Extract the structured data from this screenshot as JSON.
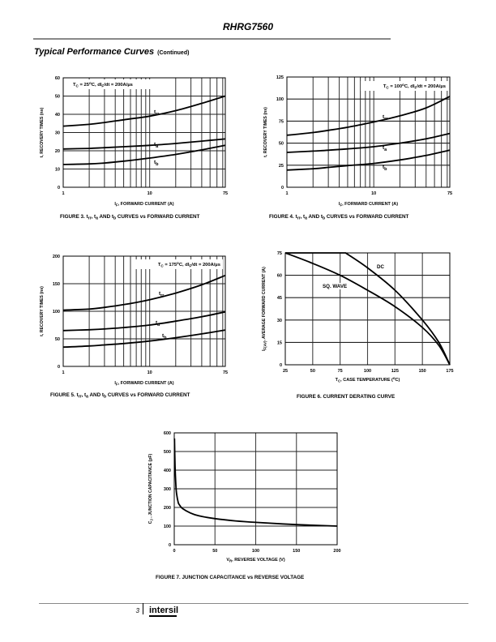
{
  "header": {
    "title": "RHRG7560"
  },
  "section": {
    "title": "Typical Performance Curves",
    "continued": "(Continued)"
  },
  "footer": {
    "page": "3",
    "logo": "intersil"
  },
  "chart_data": [
    {
      "id": "fig3",
      "type": "line",
      "xscale": "log",
      "caption": "FIGURE 3.  trr, ta AND tb CURVES vs FORWARD CURRENT",
      "caption_parts": [
        "FIGURE 3.  t",
        "rr",
        ", t",
        "a",
        " AND t",
        "b",
        " CURVES vs FORWARD CURRENT"
      ],
      "xlabel_parts": [
        "I",
        "F",
        ", FORWARD CURRENT (A)"
      ],
      "ylabel": "t, RECOVERY TIMES (ns)",
      "annotation_parts": [
        "T",
        "C",
        " = 25",
        "o",
        "C, dI",
        "F",
        "/dt = 200A/µs"
      ],
      "xlim": [
        1,
        75
      ],
      "ylim": [
        0,
        60
      ],
      "xticks": [
        1,
        10,
        75
      ],
      "xtick_labels": [
        "1",
        "10",
        "75"
      ],
      "yticks": [
        0,
        10,
        20,
        30,
        40,
        50,
        60
      ],
      "ytick_labels": [
        "0",
        "10",
        "20",
        "30",
        "40",
        "50",
        "60"
      ],
      "xgrid": [
        2,
        3,
        4,
        5,
        6,
        7,
        8,
        9,
        10,
        20,
        30,
        40,
        50,
        60,
        70
      ],
      "series": [
        {
          "name": "trr",
          "label": "t",
          "sub": "rr",
          "x": [
            1,
            2,
            3,
            5,
            10,
            20,
            40,
            75
          ],
          "y": [
            33.5,
            34.5,
            35.5,
            37,
            39,
            42,
            46,
            50
          ]
        },
        {
          "name": "ta",
          "label": "t",
          "sub": "a",
          "x": [
            1,
            2,
            3,
            5,
            10,
            20,
            40,
            75
          ],
          "y": [
            21,
            21.3,
            21.7,
            22.2,
            23,
            24,
            25.3,
            26.5
          ]
        },
        {
          "name": "tb",
          "label": "t",
          "sub": "b",
          "x": [
            1,
            2,
            3,
            5,
            10,
            20,
            40,
            75
          ],
          "y": [
            12.5,
            12.8,
            13.3,
            14.3,
            16,
            18,
            20.5,
            23
          ]
        }
      ]
    },
    {
      "id": "fig4",
      "type": "line",
      "xscale": "log",
      "caption": "FIGURE 4.  trr, ta AND tb CURVES vs FORWARD CURRENT",
      "caption_parts": [
        "FIGURE 4.  t",
        "rr",
        ", t",
        "a",
        " AND t",
        "b",
        " CURVES vs FORWARD CURRENT"
      ],
      "xlabel_parts": [
        "I",
        "F",
        ", FORWARD CURRENT (A)"
      ],
      "ylabel": "t, RECOVERY TIMES (ns)",
      "annotation_parts": [
        "T",
        "C",
        " = 100",
        "o",
        "C, dI",
        "F",
        "/dt = 200A/µs"
      ],
      "xlim": [
        1,
        75
      ],
      "ylim": [
        0,
        125
      ],
      "xticks": [
        1,
        10,
        75
      ],
      "xtick_labels": [
        "1",
        "10",
        "75"
      ],
      "yticks": [
        0,
        25,
        50,
        75,
        100,
        125
      ],
      "ytick_labels": [
        "0",
        "25",
        "50",
        "75",
        "100",
        "125"
      ],
      "xgrid": [
        2,
        3,
        4,
        5,
        6,
        7,
        8,
        9,
        10,
        20,
        30,
        40,
        50,
        60,
        70
      ],
      "series": [
        {
          "name": "trr",
          "label": "t",
          "sub": "rr",
          "x": [
            1,
            2,
            3,
            5,
            10,
            20,
            40,
            75
          ],
          "y": [
            59,
            62,
            64.5,
            68,
            74,
            81,
            90,
            103
          ]
        },
        {
          "name": "ta",
          "label": "t",
          "sub": "a",
          "x": [
            1,
            2,
            3,
            5,
            10,
            20,
            40,
            75
          ],
          "y": [
            39.5,
            41,
            42,
            43.5,
            46,
            50,
            55,
            61
          ]
        },
        {
          "name": "tb",
          "label": "t",
          "sub": "b",
          "x": [
            1,
            2,
            3,
            5,
            10,
            20,
            40,
            75
          ],
          "y": [
            19.5,
            21,
            22.5,
            24.5,
            27,
            31,
            36,
            42
          ]
        }
      ]
    },
    {
      "id": "fig5",
      "type": "line",
      "xscale": "log",
      "caption": "FIGURE 5.  trr, ta AND tb CURVES vs FORWARD CURRENT",
      "caption_parts": [
        "FIGURE 5.  t",
        "rr",
        ", t",
        "a",
        " AND t",
        "b",
        " CURVES vs FORWARD CURRENT"
      ],
      "xlabel_parts": [
        "I",
        "F",
        ", FORWARD CURRENT (A)"
      ],
      "ylabel": "t, RECOVERY TIMES (ns)",
      "annotation_parts": [
        "T",
        "C",
        " = 175",
        "o",
        "C, dI",
        "F",
        "/dt = 200A/µs"
      ],
      "xlim": [
        1,
        75
      ],
      "ylim": [
        0,
        200
      ],
      "xticks": [
        1,
        10,
        75
      ],
      "xtick_labels": [
        "1",
        "10",
        "75"
      ],
      "yticks": [
        0,
        50,
        100,
        150,
        200
      ],
      "ytick_labels": [
        "0",
        "50",
        "100",
        "150",
        "200"
      ],
      "xgrid": [
        2,
        3,
        4,
        5,
        6,
        7,
        8,
        9,
        10,
        20,
        30,
        40,
        50,
        60,
        70
      ],
      "series": [
        {
          "name": "trr",
          "label": "t",
          "sub": "rr",
          "x": [
            1,
            2,
            3,
            5,
            10,
            20,
            40,
            75
          ],
          "y": [
            102,
            104,
            107,
            112,
            121,
            133,
            148,
            165
          ]
        },
        {
          "name": "ta",
          "label": "t",
          "sub": "a",
          "x": [
            1,
            2,
            3,
            5,
            10,
            20,
            40,
            75
          ],
          "y": [
            65,
            66.5,
            68,
            70.5,
            75,
            82,
            90,
            99
          ]
        },
        {
          "name": "tb",
          "label": "t",
          "sub": "b",
          "x": [
            1,
            2,
            3,
            5,
            10,
            20,
            40,
            75
          ],
          "y": [
            35,
            37,
            39,
            41.5,
            46,
            52,
            59,
            66
          ]
        }
      ]
    },
    {
      "id": "fig6",
      "type": "line",
      "xscale": "linear",
      "caption": "FIGURE 6.  CURRENT DERATING CURVE",
      "caption_parts": [
        "FIGURE 6.  CURRENT DERATING CURVE"
      ],
      "xlabel_parts": [
        "T",
        "C",
        ", CASE TEMPERATURE  (",
        "o",
        "C)"
      ],
      "ylabel": "IF(AV), AVERAGE FORWARD CURRENT  (A)",
      "ylabel_parts": [
        "I",
        "F(AV)",
        ", AVERAGE FORWARD CURRENT  (A)"
      ],
      "xlim": [
        25,
        175
      ],
      "ylim": [
        0,
        75
      ],
      "xticks": [
        25,
        50,
        75,
        100,
        125,
        150,
        175
      ],
      "xtick_labels": [
        "25",
        "50",
        "75",
        "100",
        "125",
        "150",
        "175"
      ],
      "yticks": [
        0,
        15,
        30,
        45,
        60,
        75
      ],
      "ytick_labels": [
        "0",
        "15",
        "30",
        "45",
        "60",
        "75"
      ],
      "series": [
        {
          "name": "DC",
          "label": "DC",
          "x": [
            25,
            80,
            100,
            125,
            150,
            165,
            175
          ],
          "y": [
            75,
            75,
            65,
            50,
            30,
            15,
            0
          ]
        },
        {
          "name": "SQ. WAVE",
          "label": "SQ. WAVE",
          "x": [
            25,
            50,
            75,
            100,
            125,
            150,
            165,
            175
          ],
          "y": [
            75,
            68,
            60,
            50,
            39,
            25,
            13,
            0
          ]
        }
      ]
    },
    {
      "id": "fig7",
      "type": "line",
      "xscale": "linear",
      "caption": "FIGURE 7.  JUNCTION CAPACITANCE vs REVERSE VOLTAGE",
      "caption_parts": [
        "FIGURE 7.  JUNCTION CAPACITANCE vs REVERSE VOLTAGE"
      ],
      "xlabel_parts": [
        "V",
        "R",
        ", REVERSE VOLTAGE  (V)"
      ],
      "ylabel": "CJ , JUNCTION CAPACITANCE (pF)",
      "ylabel_parts": [
        "C",
        "J",
        " , JUNCTION CAPACITANCE (pF)"
      ],
      "xlim": [
        0,
        200
      ],
      "ylim": [
        0,
        600
      ],
      "xticks": [
        0,
        50,
        100,
        150,
        200
      ],
      "xtick_labels": [
        "0",
        "50",
        "100",
        "150",
        "200"
      ],
      "yticks": [
        0,
        100,
        200,
        300,
        400,
        500,
        600
      ],
      "ytick_labels": [
        "0",
        "100",
        "200",
        "300",
        "400",
        "500",
        "600"
      ],
      "series": [
        {
          "name": "CJ",
          "x": [
            0.3,
            1,
            2,
            3,
            5,
            7,
            10,
            20,
            30,
            50,
            75,
            100,
            150,
            200
          ],
          "y": [
            570,
            420,
            320,
            270,
            225,
            210,
            195,
            170,
            155,
            140,
            128,
            120,
            108,
            100
          ]
        }
      ]
    }
  ]
}
